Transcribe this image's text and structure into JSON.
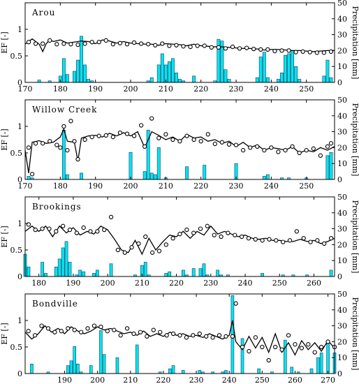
{
  "chart_data": [
    {
      "type": "bar",
      "title": "Arou",
      "ylabel": "EF [-]",
      "y2label": "Precipitation [mm]",
      "xlim": [
        170,
        258
      ],
      "ylim": [
        0,
        1.5
      ],
      "y2lim": [
        0,
        50
      ],
      "xticks": [
        170,
        180,
        190,
        200,
        210,
        220,
        230,
        240,
        250
      ],
      "yticks": [
        0,
        0.5,
        1
      ],
      "y2ticks": [
        0,
        10,
        20,
        30,
        40,
        50
      ],
      "precip": {
        "x": [
          174,
          177,
          180,
          181,
          182,
          184,
          185,
          186,
          187,
          188,
          189,
          205,
          206,
          208,
          209,
          210,
          211,
          212,
          213,
          214,
          215,
          218,
          224,
          225,
          226,
          227,
          228,
          236,
          237,
          238,
          239,
          242,
          243,
          244,
          245,
          246,
          247,
          248,
          255,
          256,
          257
        ],
        "values": [
          1.5,
          1,
          4,
          15,
          5,
          7,
          14,
          29,
          11,
          2,
          1,
          1,
          3,
          11,
          18,
          11,
          13,
          15,
          6,
          2,
          1,
          4,
          1,
          27,
          26,
          8,
          2,
          3,
          16,
          19,
          3,
          2,
          6,
          17,
          18,
          20,
          10,
          2,
          4,
          14,
          3
        ]
      },
      "ef_line": {
        "x": [
          170,
          172,
          174,
          175,
          176,
          177,
          178,
          180,
          182,
          184,
          186,
          188,
          190,
          192,
          194,
          196,
          198,
          200,
          202,
          204,
          206,
          208,
          210,
          212,
          214,
          216,
          218,
          220,
          222,
          224,
          226,
          228,
          230,
          232,
          234,
          236,
          238,
          240,
          242,
          244,
          246,
          248,
          250,
          252,
          254,
          256,
          258
        ],
        "values": [
          0.72,
          0.82,
          0.72,
          0.58,
          0.73,
          0.8,
          0.77,
          0.8,
          0.74,
          0.76,
          0.78,
          0.77,
          0.73,
          0.8,
          0.78,
          0.74,
          0.77,
          0.74,
          0.73,
          0.72,
          0.72,
          0.7,
          0.73,
          0.72,
          0.71,
          0.69,
          0.72,
          0.69,
          0.68,
          0.67,
          0.67,
          0.66,
          0.65,
          0.64,
          0.64,
          0.63,
          0.61,
          0.62,
          0.62,
          0.61,
          0.6,
          0.6,
          0.59,
          0.58,
          0.59,
          0.6,
          0.6
        ]
      },
      "ef_obs": {
        "x": [
          171,
          173,
          175,
          177,
          179,
          181,
          183,
          185,
          187,
          189,
          191,
          193,
          195,
          197,
          199,
          201,
          203,
          205,
          207,
          209,
          211,
          213,
          215,
          217,
          219,
          221,
          223,
          225,
          227,
          229,
          231,
          233,
          235,
          237,
          239,
          241,
          243,
          245,
          247,
          249,
          251,
          253,
          255,
          257
        ],
        "values": [
          0.76,
          0.73,
          0.73,
          0.79,
          0.72,
          0.73,
          0.72,
          0.71,
          0.73,
          0.76,
          0.76,
          0.79,
          0.72,
          0.74,
          0.72,
          0.75,
          0.73,
          0.72,
          0.7,
          0.73,
          0.69,
          0.7,
          0.68,
          0.67,
          0.69,
          0.69,
          0.66,
          0.66,
          0.64,
          0.67,
          0.64,
          0.65,
          0.63,
          0.62,
          0.62,
          0.59,
          0.6,
          0.6,
          0.57,
          0.58,
          0.57,
          0.56,
          0.56,
          0.58
        ]
      }
    },
    {
      "type": "bar",
      "title": "Willow Creek",
      "ylabel": "EF [-]",
      "y2label": "Precipitation [mm]",
      "xlim": [
        170,
        258
      ],
      "ylim": [
        0,
        1.5
      ],
      "y2lim": [
        0,
        50
      ],
      "xticks": [
        170,
        180,
        190,
        200,
        210,
        220,
        230,
        240,
        250
      ],
      "yticks": [
        0,
        0.5,
        1
      ],
      "y2ticks": [
        0,
        10,
        20,
        30,
        40,
        50
      ],
      "precip": {
        "x": [
          171,
          172,
          181,
          182,
          186,
          200,
          204,
          205,
          206,
          207,
          208,
          210,
          216,
          221,
          230,
          238,
          239,
          243,
          245,
          250,
          256,
          257
        ],
        "values": [
          2,
          1,
          31,
          3,
          4,
          17,
          5,
          31,
          4,
          3,
          20,
          1,
          8,
          9,
          10,
          2,
          3,
          1,
          1,
          1,
          15,
          17
        ]
      },
      "ef_line": {
        "x": [
          170,
          171,
          172,
          174,
          176,
          178,
          180,
          181,
          182,
          184,
          185,
          186,
          188,
          190,
          192,
          194,
          196,
          198,
          200,
          202,
          204,
          206,
          208,
          210,
          212,
          214,
          216,
          218,
          220,
          222,
          224,
          226,
          228,
          230,
          232,
          234,
          236,
          238,
          240,
          242,
          244,
          246,
          248,
          250,
          252,
          254,
          256,
          258
        ],
        "values": [
          0.55,
          0.12,
          0.7,
          0.73,
          0.68,
          0.7,
          0.8,
          0.95,
          0.72,
          0.7,
          0.35,
          0.78,
          0.82,
          0.83,
          0.8,
          0.87,
          0.82,
          0.88,
          0.82,
          0.9,
          0.6,
          0.9,
          0.83,
          0.75,
          0.8,
          0.72,
          0.85,
          0.78,
          0.8,
          0.72,
          0.75,
          0.68,
          0.72,
          0.62,
          0.7,
          0.6,
          0.65,
          0.55,
          0.6,
          0.58,
          0.55,
          0.62,
          0.5,
          0.55,
          0.52,
          0.6,
          0.55,
          0.62
        ]
      },
      "ef_obs": {
        "x": [
          171,
          172,
          173,
          175,
          177,
          179,
          180,
          181,
          182,
          183,
          184,
          185,
          187,
          189,
          191,
          193,
          195,
          197,
          199,
          201,
          203,
          204,
          206,
          208,
          210,
          212,
          214,
          216,
          218,
          220,
          222,
          224,
          226,
          228,
          230,
          232,
          234,
          236,
          238,
          240,
          242,
          244,
          246,
          248,
          250,
          252,
          254,
          256,
          257
        ],
        "values": [
          0.6,
          0.1,
          0.68,
          0.68,
          0.72,
          0.65,
          0.6,
          1.0,
          0.55,
          1.1,
          0.72,
          0.38,
          0.75,
          0.8,
          0.82,
          0.83,
          0.8,
          0.88,
          0.86,
          0.82,
          1.02,
          0.62,
          1.15,
          0.78,
          0.85,
          0.75,
          0.72,
          0.82,
          0.75,
          0.72,
          0.85,
          0.67,
          0.7,
          0.66,
          0.65,
          0.55,
          0.6,
          0.62,
          0.55,
          0.6,
          0.52,
          0.55,
          0.62,
          0.5,
          0.55,
          0.58,
          0.45,
          0.62,
          0.68
        ]
      }
    },
    {
      "type": "bar",
      "title": "Brookings",
      "ylabel": "EF [-]",
      "y2label": "Precipitation [mm]",
      "xlim": [
        176,
        266
      ],
      "ylim": [
        0,
        1.5
      ],
      "y2lim": [
        0,
        50
      ],
      "xticks": [
        180,
        190,
        200,
        210,
        220,
        230,
        240,
        250,
        260
      ],
      "yticks": [
        0,
        0.5,
        1
      ],
      "y2ticks": [
        0,
        10,
        20,
        30,
        40,
        50
      ],
      "precip": {
        "x": [
          176,
          177,
          181,
          182,
          185,
          186,
          187,
          188,
          189,
          191,
          192,
          193,
          196,
          197,
          201,
          208,
          210,
          211,
          212,
          217,
          218,
          222,
          223,
          225,
          227,
          228,
          229,
          232,
          233,
          235,
          245,
          251,
          254,
          258,
          265
        ],
        "values": [
          14,
          6,
          9,
          2,
          6,
          11,
          18,
          22,
          9,
          1,
          4,
          3,
          2,
          4,
          8,
          1,
          7,
          9,
          1,
          2,
          3,
          4,
          1,
          5,
          5,
          8,
          1,
          4,
          1,
          1,
          2,
          1,
          1,
          1,
          4
        ]
      },
      "ef_line": {
        "x": [
          176,
          178,
          180,
          182,
          184,
          186,
          188,
          190,
          192,
          194,
          196,
          198,
          200,
          202,
          204,
          206,
          208,
          210,
          212,
          214,
          216,
          218,
          220,
          222,
          224,
          226,
          228,
          230,
          232,
          234,
          236,
          238,
          240,
          242,
          244,
          246,
          248,
          250,
          252,
          254,
          256,
          258,
          260,
          262,
          264,
          266
        ],
        "values": [
          0.85,
          0.95,
          0.85,
          0.95,
          0.75,
          0.95,
          0.82,
          0.92,
          0.78,
          0.85,
          0.8,
          0.95,
          0.88,
          0.7,
          0.5,
          0.45,
          0.68,
          0.42,
          0.72,
          0.5,
          0.65,
          0.78,
          0.75,
          0.85,
          0.72,
          0.85,
          0.78,
          0.95,
          0.8,
          0.85,
          0.8,
          0.75,
          0.78,
          0.72,
          0.7,
          0.72,
          0.68,
          0.68,
          0.66,
          0.66,
          0.7,
          0.66,
          0.68,
          0.62,
          0.66,
          0.72
        ]
      },
      "ef_obs": {
        "x": [
          177,
          179,
          181,
          183,
          185,
          187,
          189,
          191,
          193,
          195,
          197,
          199,
          201,
          203,
          205,
          207,
          209,
          211,
          213,
          215,
          217,
          219,
          221,
          223,
          225,
          227,
          229,
          231,
          233,
          235,
          237,
          239,
          241,
          243,
          245,
          247,
          249,
          251,
          253,
          255,
          257,
          259,
          261,
          263,
          265
        ],
        "values": [
          0.98,
          0.88,
          0.9,
          0.9,
          0.85,
          0.95,
          0.88,
          0.82,
          0.92,
          0.85,
          0.85,
          0.88,
          1.12,
          0.5,
          0.45,
          0.55,
          0.62,
          0.75,
          0.45,
          0.48,
          0.6,
          0.72,
          0.8,
          0.88,
          0.82,
          0.9,
          0.95,
          0.78,
          0.75,
          0.82,
          0.78,
          0.75,
          0.72,
          0.7,
          0.68,
          0.7,
          0.68,
          0.65,
          0.68,
          0.85,
          0.72,
          0.65,
          0.68,
          0.62,
          0.72
        ]
      }
    },
    {
      "type": "bar",
      "title": "Bondville",
      "ylabel": "EF [-]",
      "y2label": "Precipitation [mm]",
      "xlim": [
        178,
        272
      ],
      "ylim": [
        0,
        1.5
      ],
      "y2lim": [
        0,
        50
      ],
      "xticks": [
        190,
        200,
        210,
        220,
        230,
        240,
        250,
        260,
        270
      ],
      "yticks": [
        0,
        0.5,
        1
      ],
      "y2ticks": [
        0,
        10,
        20,
        30,
        40,
        50
      ],
      "precip": {
        "x": [
          180,
          185,
          191,
          192,
          193,
          194,
          195,
          198,
          201,
          202,
          206,
          212,
          219,
          222,
          223,
          226,
          231,
          232,
          235,
          238,
          239,
          241,
          244,
          249,
          253,
          257,
          259,
          261,
          265,
          267,
          268,
          270,
          272
        ],
        "values": [
          6,
          1,
          5,
          8,
          17,
          6,
          1,
          5,
          27,
          12,
          10,
          18,
          1,
          3,
          5,
          2,
          2,
          1,
          1,
          1,
          2,
          49,
          22,
          3,
          1,
          21,
          4,
          1,
          3,
          10,
          13,
          20,
          13
        ]
      },
      "ef_line": {
        "x": [
          178,
          180,
          182,
          184,
          186,
          188,
          190,
          192,
          194,
          196,
          198,
          200,
          202,
          204,
          206,
          208,
          210,
          212,
          214,
          216,
          218,
          220,
          222,
          224,
          226,
          228,
          230,
          232,
          234,
          236,
          238,
          240,
          241,
          242,
          244,
          246,
          248,
          250,
          252,
          254,
          256,
          258,
          260,
          262,
          264,
          266,
          268,
          270,
          272
        ],
        "values": [
          0.78,
          0.65,
          0.75,
          0.9,
          0.78,
          0.85,
          0.75,
          0.88,
          0.8,
          0.75,
          0.8,
          0.88,
          0.82,
          0.85,
          0.8,
          0.75,
          0.78,
          0.72,
          0.8,
          0.7,
          0.75,
          0.7,
          0.78,
          0.72,
          0.75,
          0.7,
          0.72,
          0.68,
          0.75,
          0.7,
          0.65,
          0.72,
          1.0,
          0.6,
          0.45,
          0.7,
          0.48,
          0.68,
          0.4,
          0.75,
          0.4,
          0.58,
          0.35,
          0.62,
          0.45,
          0.58,
          0.42,
          0.62,
          0.48
        ]
      },
      "ef_obs": {
        "x": [
          179,
          181,
          183,
          185,
          187,
          189,
          191,
          193,
          195,
          197,
          199,
          201,
          203,
          205,
          207,
          209,
          211,
          213,
          215,
          217,
          219,
          221,
          223,
          225,
          227,
          229,
          231,
          233,
          235,
          237,
          239,
          241,
          242,
          244,
          246,
          248,
          250,
          252,
          254,
          256,
          258,
          260,
          262,
          264,
          266,
          268,
          270,
          272
        ],
        "values": [
          0.8,
          0.72,
          0.9,
          0.85,
          0.78,
          0.8,
          0.85,
          0.82,
          0.78,
          0.85,
          0.9,
          0.88,
          0.8,
          0.82,
          0.72,
          0.85,
          0.75,
          0.78,
          0.7,
          0.82,
          0.78,
          0.72,
          0.75,
          0.72,
          0.68,
          0.72,
          0.75,
          0.7,
          0.68,
          0.72,
          0.7,
          0.7,
          1.32,
          0.5,
          0.42,
          0.68,
          0.5,
          0.25,
          0.5,
          0.45,
          0.72,
          0.55,
          0.48,
          0.55,
          0.4,
          0.5,
          0.6,
          0.5
        ]
      }
    }
  ]
}
